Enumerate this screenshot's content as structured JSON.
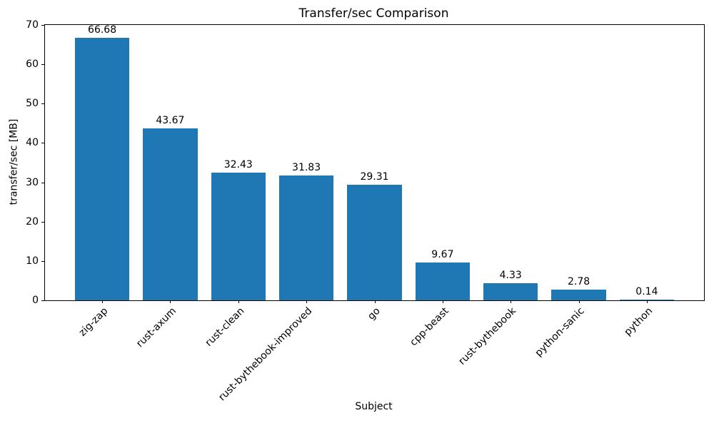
{
  "chart_data": {
    "type": "bar",
    "title": "Transfer/sec Comparison",
    "xlabel": "Subject",
    "ylabel": "transfer/sec [MB]",
    "categories": [
      "zig-zap",
      "rust-axum",
      "rust-clean",
      "rust-bythebook-improved",
      "go",
      "cpp-beast",
      "rust-bythebook",
      "python-sanic",
      "python"
    ],
    "values": [
      66.68,
      43.67,
      32.43,
      31.83,
      29.31,
      9.67,
      4.33,
      2.78,
      0.14
    ],
    "value_labels": [
      "66.68",
      "43.67",
      "32.43",
      "31.83",
      "29.31",
      "9.67",
      "4.33",
      "2.78",
      "0.14"
    ],
    "ylim": [
      0,
      70
    ],
    "yticks": [
      0,
      10,
      20,
      30,
      40,
      50,
      60,
      70
    ],
    "ytick_labels": [
      "0",
      "10",
      "20",
      "30",
      "40",
      "50",
      "60",
      "70"
    ],
    "x_tick_rotation_deg": 45,
    "bar_color": "#1f77b4",
    "background_color": "#ffffff",
    "grid": false,
    "legend": "none"
  }
}
